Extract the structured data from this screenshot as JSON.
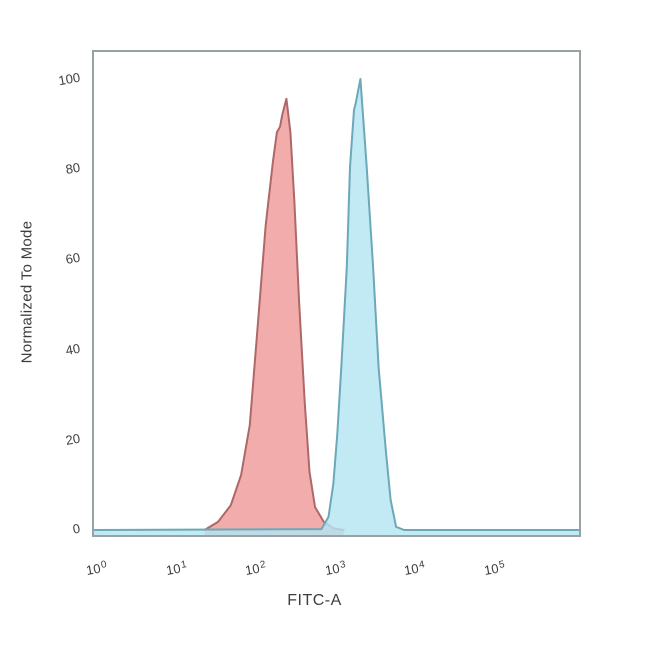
{
  "chart": {
    "ylabel": "Normalized To Mode",
    "xlabel": "FITC-A",
    "y_ticks": [
      "0",
      "20",
      "40",
      "60",
      "80",
      "100"
    ],
    "x_ticks": [
      {
        "base": "10",
        "exp": "0"
      },
      {
        "base": "10",
        "exp": "1"
      },
      {
        "base": "10",
        "exp": "2"
      },
      {
        "base": "10",
        "exp": "3"
      },
      {
        "base": "10",
        "exp": "4"
      },
      {
        "base": "10",
        "exp": "5"
      }
    ]
  },
  "colors": {
    "background": "#ffffff",
    "axis_border": "#99a1a5",
    "text": "#3e3e3e",
    "red_fill": "#f2a3a3",
    "red_stroke": "#ad6868",
    "blue_fill": "#b3e5f2",
    "blue_stroke": "#6ba8b8"
  },
  "chart_data": {
    "type": "area",
    "subtype": "flow-cytometry-histogram-overlay",
    "title": "",
    "xlabel": "FITC-A",
    "ylabel": "Normalized To Mode",
    "xscale": "log10",
    "xlim_log10": [
      0,
      6.1
    ],
    "ylim": [
      0,
      100
    ],
    "grid": false,
    "legend": "none",
    "x_tick_values": [
      1,
      10,
      100,
      1000,
      10000,
      100000
    ],
    "y_tick_values": [
      0,
      20,
      40,
      60,
      80,
      100
    ],
    "series": [
      {
        "name": "red-histogram",
        "fill": "#f2a3a3",
        "fill_opacity": 0.9,
        "stroke": "#ad6868",
        "peak_value": 96,
        "peak_x_log10": 2.42,
        "points": [
          [
            1.39,
            0
          ],
          [
            1.56,
            1.8
          ],
          [
            1.72,
            5.5
          ],
          [
            1.85,
            12.2
          ],
          [
            1.96,
            23.3
          ],
          [
            2.06,
            45.5
          ],
          [
            2.16,
            67.6
          ],
          [
            2.25,
            81.6
          ],
          [
            2.3,
            88.2
          ],
          [
            2.34,
            89.4
          ],
          [
            2.37,
            92.2
          ],
          [
            2.42,
            95.6
          ],
          [
            2.47,
            88.2
          ],
          [
            2.52,
            72.7
          ],
          [
            2.58,
            50.6
          ],
          [
            2.65,
            28.4
          ],
          [
            2.71,
            12.9
          ],
          [
            2.78,
            5.1
          ],
          [
            2.89,
            1.8
          ],
          [
            3.01,
            0.4
          ],
          [
            3.14,
            0
          ]
        ]
      },
      {
        "name": "blue-histogram",
        "fill": "#b3e5f2",
        "fill_opacity": 0.82,
        "stroke": "#6ba8b8",
        "peak_value": 100,
        "peak_x_log10": 3.35,
        "points": [
          [
            0,
            0
          ],
          [
            2.86,
            0.2
          ],
          [
            2.95,
            2.9
          ],
          [
            3.01,
            10.2
          ],
          [
            3.06,
            21.3
          ],
          [
            3.11,
            36.1
          ],
          [
            3.18,
            58.3
          ],
          [
            3.22,
            80.5
          ],
          [
            3.27,
            93.1
          ],
          [
            3.29,
            94.5
          ],
          [
            3.35,
            100
          ],
          [
            3.43,
            80.5
          ],
          [
            3.51,
            58.3
          ],
          [
            3.58,
            36.1
          ],
          [
            3.67,
            17.7
          ],
          [
            3.73,
            6.7
          ],
          [
            3.8,
            0.7
          ],
          [
            3.9,
            0
          ],
          [
            6.1,
            0
          ]
        ]
      }
    ]
  }
}
